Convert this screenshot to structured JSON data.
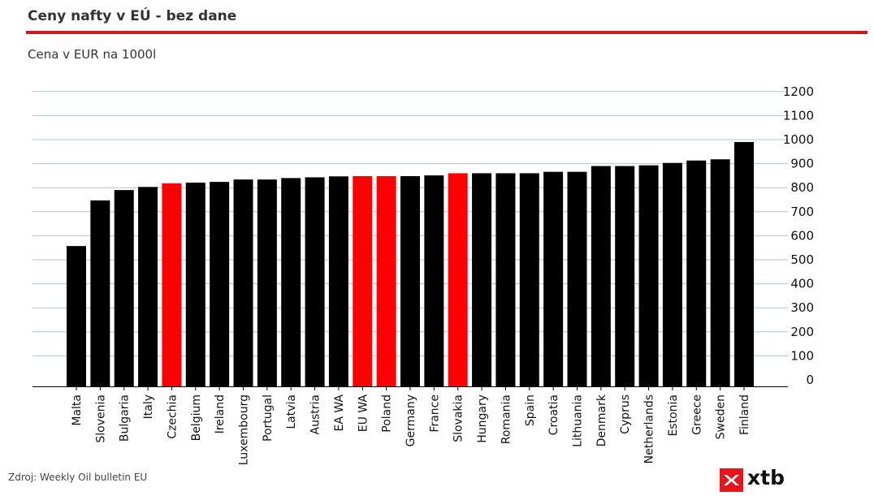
{
  "header": {
    "title": "Ceny nafty v EÚ - bez dane",
    "subtitle": "Cena v EUR na 1000l"
  },
  "footer": {
    "source": "Zdroj: Weekly Oil bulletin EU",
    "logo_text": "xtb",
    "logo_icon": "xtb-x-icon"
  },
  "colors": {
    "accent": "#d0191b",
    "bar": "#000000",
    "highlight": "#ff0000",
    "grid": "#b0c4c0"
  },
  "chart_data": {
    "type": "bar",
    "categories": [
      "Malta",
      "Slovenia",
      "Bulgaria",
      "Italy",
      "Czechia",
      "Belgium",
      "Ireland",
      "Luxembourg",
      "Portugal",
      "Latvia",
      "Austria",
      "EA WA",
      "EU WA",
      "Poland",
      "Germany",
      "France",
      "Slovakia",
      "Hungary",
      "Romania",
      "Spain",
      "Croatia",
      "Lithuania",
      "Denmark",
      "Cyprus",
      "Netherlands",
      "Estonia",
      "Greece",
      "Sweden",
      "Finland"
    ],
    "values": [
      557,
      747,
      790,
      803,
      818,
      821,
      824,
      834,
      834,
      840,
      843,
      847,
      848,
      848,
      848,
      851,
      860,
      860,
      860,
      860,
      866,
      866,
      890,
      890,
      893,
      903,
      913,
      918,
      990
    ],
    "highlighted": [
      "Czechia",
      "EU WA",
      "Poland",
      "Slovakia"
    ],
    "yticks": [
      0,
      100,
      200,
      300,
      400,
      500,
      600,
      700,
      800,
      900,
      1000,
      1100,
      1200
    ],
    "ylim": [
      0,
      1230
    ],
    "y_axis_side": "right",
    "grid": true,
    "legend": "none"
  }
}
